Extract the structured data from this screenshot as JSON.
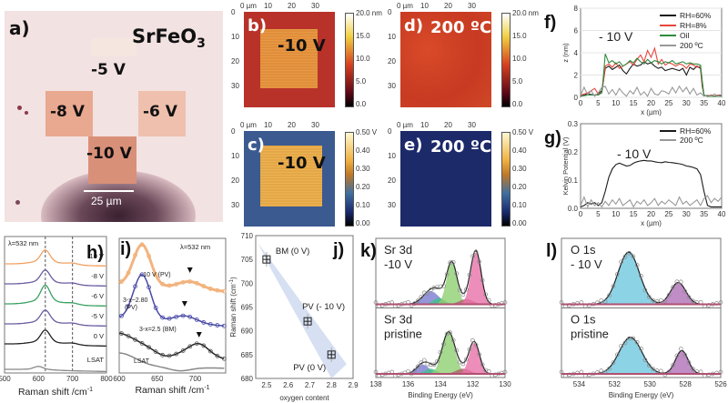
{
  "figure": {
    "panel_a": {
      "label": "a)",
      "material_main": "SrFeO",
      "material_sub": "3",
      "squares": [
        {
          "name": "-5 V",
          "label": "-5 V"
        },
        {
          "name": "-8 V",
          "label": "-8 V"
        },
        {
          "name": "-6 V",
          "label": "-6 V"
        },
        {
          "name": "-10 V",
          "label": "-10 V"
        }
      ],
      "scale_bar": "25 µm"
    },
    "panel_b": {
      "label": "b)",
      "annotation": "-10 V"
    },
    "panel_c": {
      "label": "c)",
      "annotation": "-10 V"
    },
    "panel_d": {
      "label": "d)",
      "annotation": "200 ºC"
    },
    "panel_e": {
      "label": "e)",
      "annotation": "200 ºC"
    },
    "map_axes": {
      "x_ticks": [
        "0 µm",
        "10",
        "20",
        "30"
      ],
      "y_ticks": [
        "0",
        "10",
        "20",
        "30"
      ]
    },
    "colorbar_height": {
      "ticks": [
        "20.0 nm",
        "15.0",
        "10.0",
        "5.0",
        "0.0"
      ]
    },
    "colorbar_height_d": {
      "ticks": [
        "20.0 nm",
        "15.0",
        "10.0",
        "5.0",
        "0.0"
      ]
    },
    "colorbar_kelvin": {
      "ticks": [
        "0.50 V",
        "0.40",
        "0.30",
        "0.20",
        "0.10",
        "0.00"
      ]
    },
    "colorbar_kelvin_e": {
      "ticks": [
        "0.50 V",
        "0.40",
        "0.30",
        "0.20",
        "0.10",
        "0.00"
      ]
    }
  },
  "chart_data": [
    {
      "id": "f",
      "panel_label": "f)",
      "type": "line",
      "title": "",
      "annotation": "- 10 V",
      "xlabel": "x (µm)",
      "ylabel": "z (nm)",
      "xlim": [
        0,
        40
      ],
      "ylim": [
        0,
        8
      ],
      "x_ticks": [
        0,
        5,
        10,
        15,
        20,
        25,
        30,
        35,
        40
      ],
      "y_ticks": [
        0,
        2,
        4,
        6,
        8
      ],
      "grid": true,
      "legend_position": "top-right",
      "series": [
        {
          "name": "RH=60%",
          "color": "#1a1a1a",
          "x": [
            0,
            2,
            4,
            5,
            6,
            6.5,
            7,
            8,
            9,
            10,
            11,
            12,
            13,
            14,
            15,
            16,
            17,
            18,
            19,
            20,
            21,
            22,
            23,
            24,
            25,
            26,
            27,
            28,
            29,
            30,
            31,
            32,
            33,
            34,
            34.5,
            35,
            36,
            37,
            38,
            39,
            40
          ],
          "y": [
            0.1,
            0.3,
            0.2,
            0.3,
            0.6,
            1.5,
            2.6,
            2.8,
            2.5,
            2.7,
            2.9,
            2.4,
            2.1,
            2.6,
            3.0,
            2.8,
            2.9,
            3.2,
            3.0,
            3.1,
            2.8,
            2.6,
            2.7,
            2.4,
            2.5,
            2.6,
            2.5,
            2.4,
            2.6,
            2.0,
            2.7,
            2.5,
            2.8,
            2.6,
            1.0,
            0.2,
            0.1,
            0.2,
            0.1,
            0.2,
            0.2
          ]
        },
        {
          "name": "RH=8%",
          "color": "#e8463c",
          "x": [
            0,
            2,
            4,
            5,
            6,
            6.5,
            7,
            8,
            9,
            10,
            11,
            12,
            13,
            14,
            15,
            16,
            17,
            18,
            19,
            20,
            21,
            22,
            23,
            24,
            25,
            26,
            27,
            28,
            29,
            30,
            31,
            32,
            33,
            34,
            34.5,
            35,
            36,
            37,
            38,
            39,
            40
          ],
          "y": [
            0.2,
            0.4,
            0.8,
            0.3,
            0.4,
            1.5,
            2.8,
            3.0,
            2.7,
            3.1,
            2.6,
            2.8,
            3.0,
            3.2,
            2.9,
            3.4,
            3.8,
            3.2,
            4.2,
            3.6,
            4.4,
            3.0,
            3.4,
            2.9,
            3.1,
            3.0,
            2.8,
            3.0,
            2.9,
            2.6,
            3.0,
            2.9,
            2.7,
            2.8,
            1.2,
            0.2,
            0.1,
            0.2,
            0.1,
            0.2,
            0.1
          ]
        },
        {
          "name": "Oil",
          "color": "#2e8b3e",
          "x": [
            0,
            2,
            4,
            5,
            6,
            6.5,
            7,
            8,
            9,
            10,
            11,
            12,
            13,
            14,
            15,
            16,
            17,
            18,
            19,
            20,
            21,
            22,
            23,
            24,
            25,
            26,
            27,
            28,
            29,
            30,
            31,
            32,
            33,
            34,
            34.5,
            35,
            36,
            37,
            38,
            39,
            40
          ],
          "y": [
            0.1,
            0.2,
            0.2,
            0.2,
            0.4,
            2.0,
            3.9,
            3.1,
            3.3,
            3.0,
            3.2,
            2.8,
            3.0,
            3.3,
            3.1,
            3.5,
            3.2,
            3.0,
            3.4,
            3.1,
            3.3,
            3.2,
            3.0,
            3.2,
            3.1,
            3.3,
            3.0,
            3.1,
            3.2,
            3.0,
            3.1,
            3.0,
            3.0,
            2.9,
            1.5,
            0.2,
            0.1,
            0.1,
            0.1,
            0.1,
            0.1
          ]
        },
        {
          "name": "200 ºC",
          "color": "#999999",
          "x": [
            0,
            1,
            2,
            3,
            4,
            5,
            6,
            7,
            8,
            9,
            10,
            11,
            12,
            13,
            14,
            15,
            16,
            17,
            18,
            19,
            20,
            21,
            22,
            23,
            24,
            25,
            26,
            27,
            28,
            29,
            30,
            31,
            32,
            33,
            34,
            35,
            36,
            37,
            38,
            39,
            40
          ],
          "y": [
            0.2,
            0.9,
            0.2,
            0.6,
            0.1,
            0.4,
            0.9,
            1.0,
            0.3,
            0.7,
            0.2,
            0.8,
            0.4,
            0.1,
            0.6,
            0.3,
            0.9,
            0.2,
            0.5,
            0.1,
            0.8,
            0.3,
            0.2,
            0.6,
            0.5,
            0.3,
            0.9,
            0.4,
            1.0,
            0.5,
            0.9,
            0.3,
            0.8,
            0.2,
            0.4,
            0.1,
            0.2,
            0.1,
            0.3,
            0.1,
            0.2
          ]
        }
      ]
    },
    {
      "id": "g",
      "panel_label": "g)",
      "type": "line",
      "title": "",
      "annotation": "- 10 V",
      "xlabel": "x (µm)",
      "ylabel": "Kelvin Potential (V)",
      "xlim": [
        0,
        40
      ],
      "ylim": [
        0,
        0.3
      ],
      "x_ticks": [
        0,
        5,
        10,
        15,
        20,
        25,
        30,
        35,
        40
      ],
      "y_ticks": [
        0.0,
        0.1,
        0.2,
        0.3
      ],
      "grid": false,
      "legend_position": "top-right",
      "series": [
        {
          "name": "RH=60%",
          "color": "#1a1a1a",
          "x": [
            0,
            1,
            2,
            3,
            4,
            5,
            6,
            7,
            8,
            9,
            10,
            11,
            12,
            13,
            14,
            15,
            16,
            17,
            18,
            19,
            20,
            21,
            22,
            23,
            24,
            25,
            26,
            27,
            28,
            29,
            30,
            31,
            32,
            33,
            34,
            35,
            36,
            37,
            38,
            39,
            40
          ],
          "y": [
            0.005,
            0.01,
            0.02,
            0.015,
            0.02,
            0.01,
            0.02,
            0.06,
            0.11,
            0.14,
            0.155,
            0.16,
            0.155,
            0.15,
            0.152,
            0.16,
            0.165,
            0.168,
            0.17,
            0.168,
            0.168,
            0.165,
            0.163,
            0.162,
            0.165,
            0.163,
            0.162,
            0.16,
            0.158,
            0.155,
            0.15,
            0.148,
            0.145,
            0.14,
            0.12,
            0.06,
            0.01,
            0.005,
            0.005,
            0.005,
            0.005
          ]
        },
        {
          "name": "200 ºC",
          "color": "#999999",
          "x": [
            0,
            1,
            2,
            3,
            4,
            5,
            6,
            7,
            8,
            9,
            10,
            11,
            12,
            13,
            14,
            15,
            16,
            17,
            18,
            19,
            20,
            21,
            22,
            23,
            24,
            25,
            26,
            27,
            28,
            29,
            30,
            31,
            32,
            33,
            34,
            35,
            36,
            37,
            38,
            39,
            40
          ],
          "y": [
            0.01,
            0.04,
            0.005,
            0.03,
            0.01,
            0.02,
            0.005,
            0.025,
            0.01,
            0.03,
            0.015,
            0.035,
            0.01,
            0.02,
            0.03,
            0.005,
            0.025,
            0.015,
            0.03,
            0.01,
            0.02,
            0.035,
            0.01,
            0.025,
            0.015,
            0.03,
            0.02,
            0.01,
            0.04,
            0.015,
            0.025,
            0.01,
            0.02,
            0.03,
            0.01,
            0.035,
            0.045,
            0.02,
            0.035,
            0.025,
            0.04
          ]
        }
      ]
    },
    {
      "id": "h",
      "panel_label": "h)",
      "type": "line",
      "title": "",
      "annotation": "λ=532 nm",
      "xlabel": "Raman shift /cm",
      "xlabel_sup": "-1",
      "ylabel": "",
      "xlim": [
        500,
        800
      ],
      "x_ticks": [
        500,
        600,
        700,
        800
      ],
      "vlines": [
        620,
        700
      ],
      "grid": false,
      "series": [
        {
          "name": "-10 V",
          "color": "#f0a060",
          "peak": 620
        },
        {
          "name": "-8 V",
          "color": "#6a5aa0",
          "peak": 620
        },
        {
          "name": "-6 V",
          "color": "#3aa060",
          "peak": 620
        },
        {
          "name": "-5 V",
          "color": "#6a5aa0",
          "peak": 620
        },
        {
          "name": "0 V",
          "color": "#222222",
          "peak": 620
        },
        {
          "name": "LSAT",
          "color": "#888888",
          "peak": 600
        }
      ]
    },
    {
      "id": "i",
      "panel_label": "i)",
      "type": "line",
      "title": "",
      "annotation": "λ=532 nm",
      "xlabel": "Raman shift /cm",
      "xlabel_sup": "-1",
      "ylabel": "",
      "xlim": [
        600,
        740
      ],
      "x_ticks": [
        600,
        650,
        700
      ],
      "grid": false,
      "series": [
        {
          "name": "- 10 V (PV)",
          "color": "#f0a060",
          "peak": 630,
          "marker_at": 693
        },
        {
          "name": "3-x~2.80 (PV)",
          "color": "#4a4aa8",
          "peak": 630,
          "marker_at": 686
        },
        {
          "name": "3-x=2.5 (BM)",
          "color": "#222222",
          "peak": 600,
          "marker_at": 705
        },
        {
          "name": "LSAT",
          "color": "#888888",
          "peak": 600
        }
      ]
    },
    {
      "id": "j",
      "panel_label": "j)",
      "type": "scatter",
      "title": "",
      "xlabel": "oxygen content",
      "ylabel": "Raman shift (cm",
      "ylabel_sup": "-1",
      "ylabel_end": ")",
      "xlim": [
        2.45,
        2.9
      ],
      "ylim": [
        680,
        710
      ],
      "x_ticks": [
        2.5,
        2.6,
        2.7,
        2.8,
        2.9
      ],
      "y_ticks": [
        680,
        685,
        690,
        695,
        700,
        705,
        710
      ],
      "grid": false,
      "points": [
        {
          "label": "BM (0 V)",
          "x": 2.5,
          "y": 705
        },
        {
          "label": "PV (- 10 V)",
          "x": 2.69,
          "y": 692
        },
        {
          "label": "PV (0 V)",
          "x": 2.8,
          "y": 685
        }
      ]
    },
    {
      "id": "k",
      "panel_label": "k)",
      "type": "area",
      "title": "",
      "xlabel": "Binding Energy (eV)",
      "ylabel": "",
      "xlim": [
        138,
        130
      ],
      "x_ticks": [
        138,
        136,
        134,
        132,
        130
      ],
      "subplots": [
        {
          "label_line1": "Sr 3d",
          "label_line2": "-10 V",
          "components": [
            {
              "name": "blue",
              "color": "#7a7ad0",
              "center": 134.6,
              "amp": 0.25,
              "width": 0.7
            },
            {
              "name": "teal",
              "color": "#3ec08a",
              "center": 134.1,
              "amp": 0.12,
              "width": 0.5
            },
            {
              "name": "green",
              "color": "#8fd070",
              "center": 133.3,
              "amp": 0.8,
              "width": 0.45
            },
            {
              "name": "brown",
              "color": "#b06070",
              "center": 132.4,
              "amp": 0.1,
              "width": 0.6
            },
            {
              "name": "pink",
              "color": "#e870a8",
              "center": 131.8,
              "amp": 1.0,
              "width": 0.45
            }
          ]
        },
        {
          "label_line1": "Sr 3d",
          "label_line2": "pristine",
          "components": [
            {
              "name": "blue",
              "color": "#7a7ad0",
              "center": 135.1,
              "amp": 0.18,
              "width": 0.55
            },
            {
              "name": "teal",
              "color": "#3ec08a",
              "center": 134.6,
              "amp": 0.1,
              "width": 0.5
            },
            {
              "name": "green",
              "color": "#8fd070",
              "center": 133.5,
              "amp": 0.8,
              "width": 0.55
            },
            {
              "name": "brown",
              "color": "#b06070",
              "center": 132.6,
              "amp": 0.1,
              "width": 0.6
            },
            {
              "name": "pink",
              "color": "#e870a8",
              "center": 131.9,
              "amp": 0.6,
              "width": 0.45
            }
          ]
        }
      ]
    },
    {
      "id": "l",
      "panel_label": "l)",
      "type": "area",
      "title": "",
      "xlabel": "Binding Energy (eV)",
      "ylabel": "",
      "xlim": [
        535,
        526
      ],
      "x_ticks": [
        534,
        532,
        530,
        528,
        526
      ],
      "subplots": [
        {
          "label_line1": "O 1s",
          "label_line2": "- 10 V",
          "components": [
            {
              "name": "cyan",
              "color": "#70c8e0",
              "center": 531.2,
              "amp": 1.0,
              "width": 0.85
            },
            {
              "name": "purple",
              "color": "#b070b8",
              "center": 528.4,
              "amp": 0.42,
              "width": 0.6
            }
          ]
        },
        {
          "label_line1": "O 1s",
          "label_line2": "pristine",
          "components": [
            {
              "name": "cyan",
              "color": "#70c8e0",
              "center": 531.1,
              "amp": 0.7,
              "width": 0.9
            },
            {
              "name": "purple",
              "color": "#b070b8",
              "center": 528.2,
              "amp": 0.45,
              "width": 0.5
            }
          ]
        }
      ]
    }
  ]
}
